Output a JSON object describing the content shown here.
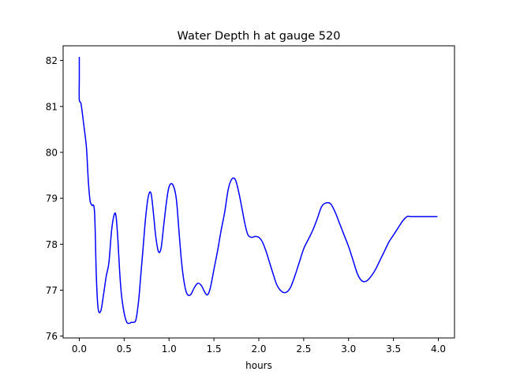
{
  "chart_data": {
    "type": "line",
    "title": "Water Depth h at gauge 520",
    "xlabel": "hours",
    "ylabel": "",
    "xlim": [
      -0.18,
      4.18
    ],
    "ylim": [
      75.96,
      82.32
    ],
    "xticks": [
      0.0,
      0.5,
      1.0,
      1.5,
      2.0,
      2.5,
      3.0,
      3.5,
      4.0
    ],
    "xtick_labels": [
      "0.0",
      "0.5",
      "1.0",
      "1.5",
      "2.0",
      "2.5",
      "3.0",
      "3.5",
      "4.0"
    ],
    "yticks": [
      76,
      77,
      78,
      79,
      80,
      81,
      82
    ],
    "ytick_labels": [
      "76",
      "77",
      "78",
      "79",
      "80",
      "81",
      "82"
    ],
    "grid": false,
    "series": [
      {
        "color": "#0000ff",
        "x": [
          0.0,
          0.0,
          0.0,
          0.02,
          0.05,
          0.08,
          0.1,
          0.12,
          0.14,
          0.17,
          0.19,
          0.21,
          0.24,
          0.27,
          0.3,
          0.33,
          0.36,
          0.39,
          0.41,
          0.43,
          0.45,
          0.47,
          0.5,
          0.53,
          0.56,
          0.58,
          0.6,
          0.63,
          0.66,
          0.68,
          0.71,
          0.74,
          0.77,
          0.8,
          0.83,
          0.85,
          0.88,
          0.91,
          0.94,
          0.97,
          1.0,
          1.04,
          1.08,
          1.11,
          1.14,
          1.17,
          1.2,
          1.24,
          1.28,
          1.32,
          1.36,
          1.4,
          1.43,
          1.46,
          1.5,
          1.54,
          1.58,
          1.62,
          1.66,
          1.7,
          1.74,
          1.78,
          1.82,
          1.85,
          1.88,
          1.92,
          1.96,
          2.0,
          2.04,
          2.08,
          2.12,
          2.16,
          2.2,
          2.25,
          2.3,
          2.35,
          2.4,
          2.45,
          2.5,
          2.55,
          2.6,
          2.65,
          2.7,
          2.75,
          2.8,
          2.85,
          2.9,
          2.95,
          3.0,
          3.05,
          3.1,
          3.15,
          3.2,
          3.25,
          3.3,
          3.35,
          3.4,
          3.45,
          3.5,
          3.55,
          3.6,
          3.65,
          3.7,
          3.75,
          3.8,
          3.85,
          3.9,
          3.95,
          3.99
        ],
        "y": [
          82.08,
          81.6,
          81.15,
          81.05,
          80.6,
          80.1,
          79.4,
          78.95,
          78.85,
          78.7,
          77.3,
          76.6,
          76.55,
          76.9,
          77.3,
          77.6,
          78.3,
          78.65,
          78.6,
          78.1,
          77.4,
          76.9,
          76.5,
          76.3,
          76.28,
          76.3,
          76.3,
          76.35,
          76.75,
          77.2,
          77.9,
          78.6,
          79.05,
          79.1,
          78.6,
          78.2,
          77.85,
          77.9,
          78.4,
          78.9,
          79.25,
          79.3,
          79.0,
          78.3,
          77.6,
          77.15,
          76.92,
          76.9,
          77.05,
          77.15,
          77.1,
          76.95,
          76.9,
          77.05,
          77.45,
          77.85,
          78.3,
          78.7,
          79.2,
          79.42,
          79.4,
          79.1,
          78.7,
          78.4,
          78.2,
          78.15,
          78.17,
          78.15,
          78.05,
          77.85,
          77.6,
          77.35,
          77.12,
          76.98,
          76.95,
          77.05,
          77.3,
          77.6,
          77.9,
          78.1,
          78.3,
          78.55,
          78.82,
          78.9,
          78.88,
          78.7,
          78.45,
          78.2,
          77.95,
          77.65,
          77.35,
          77.2,
          77.2,
          77.3,
          77.45,
          77.65,
          77.85,
          78.05,
          78.2,
          78.35,
          78.5,
          78.6,
          78.6,
          78.6,
          78.6,
          78.6,
          78.6,
          78.6,
          78.6
        ]
      }
    ]
  }
}
